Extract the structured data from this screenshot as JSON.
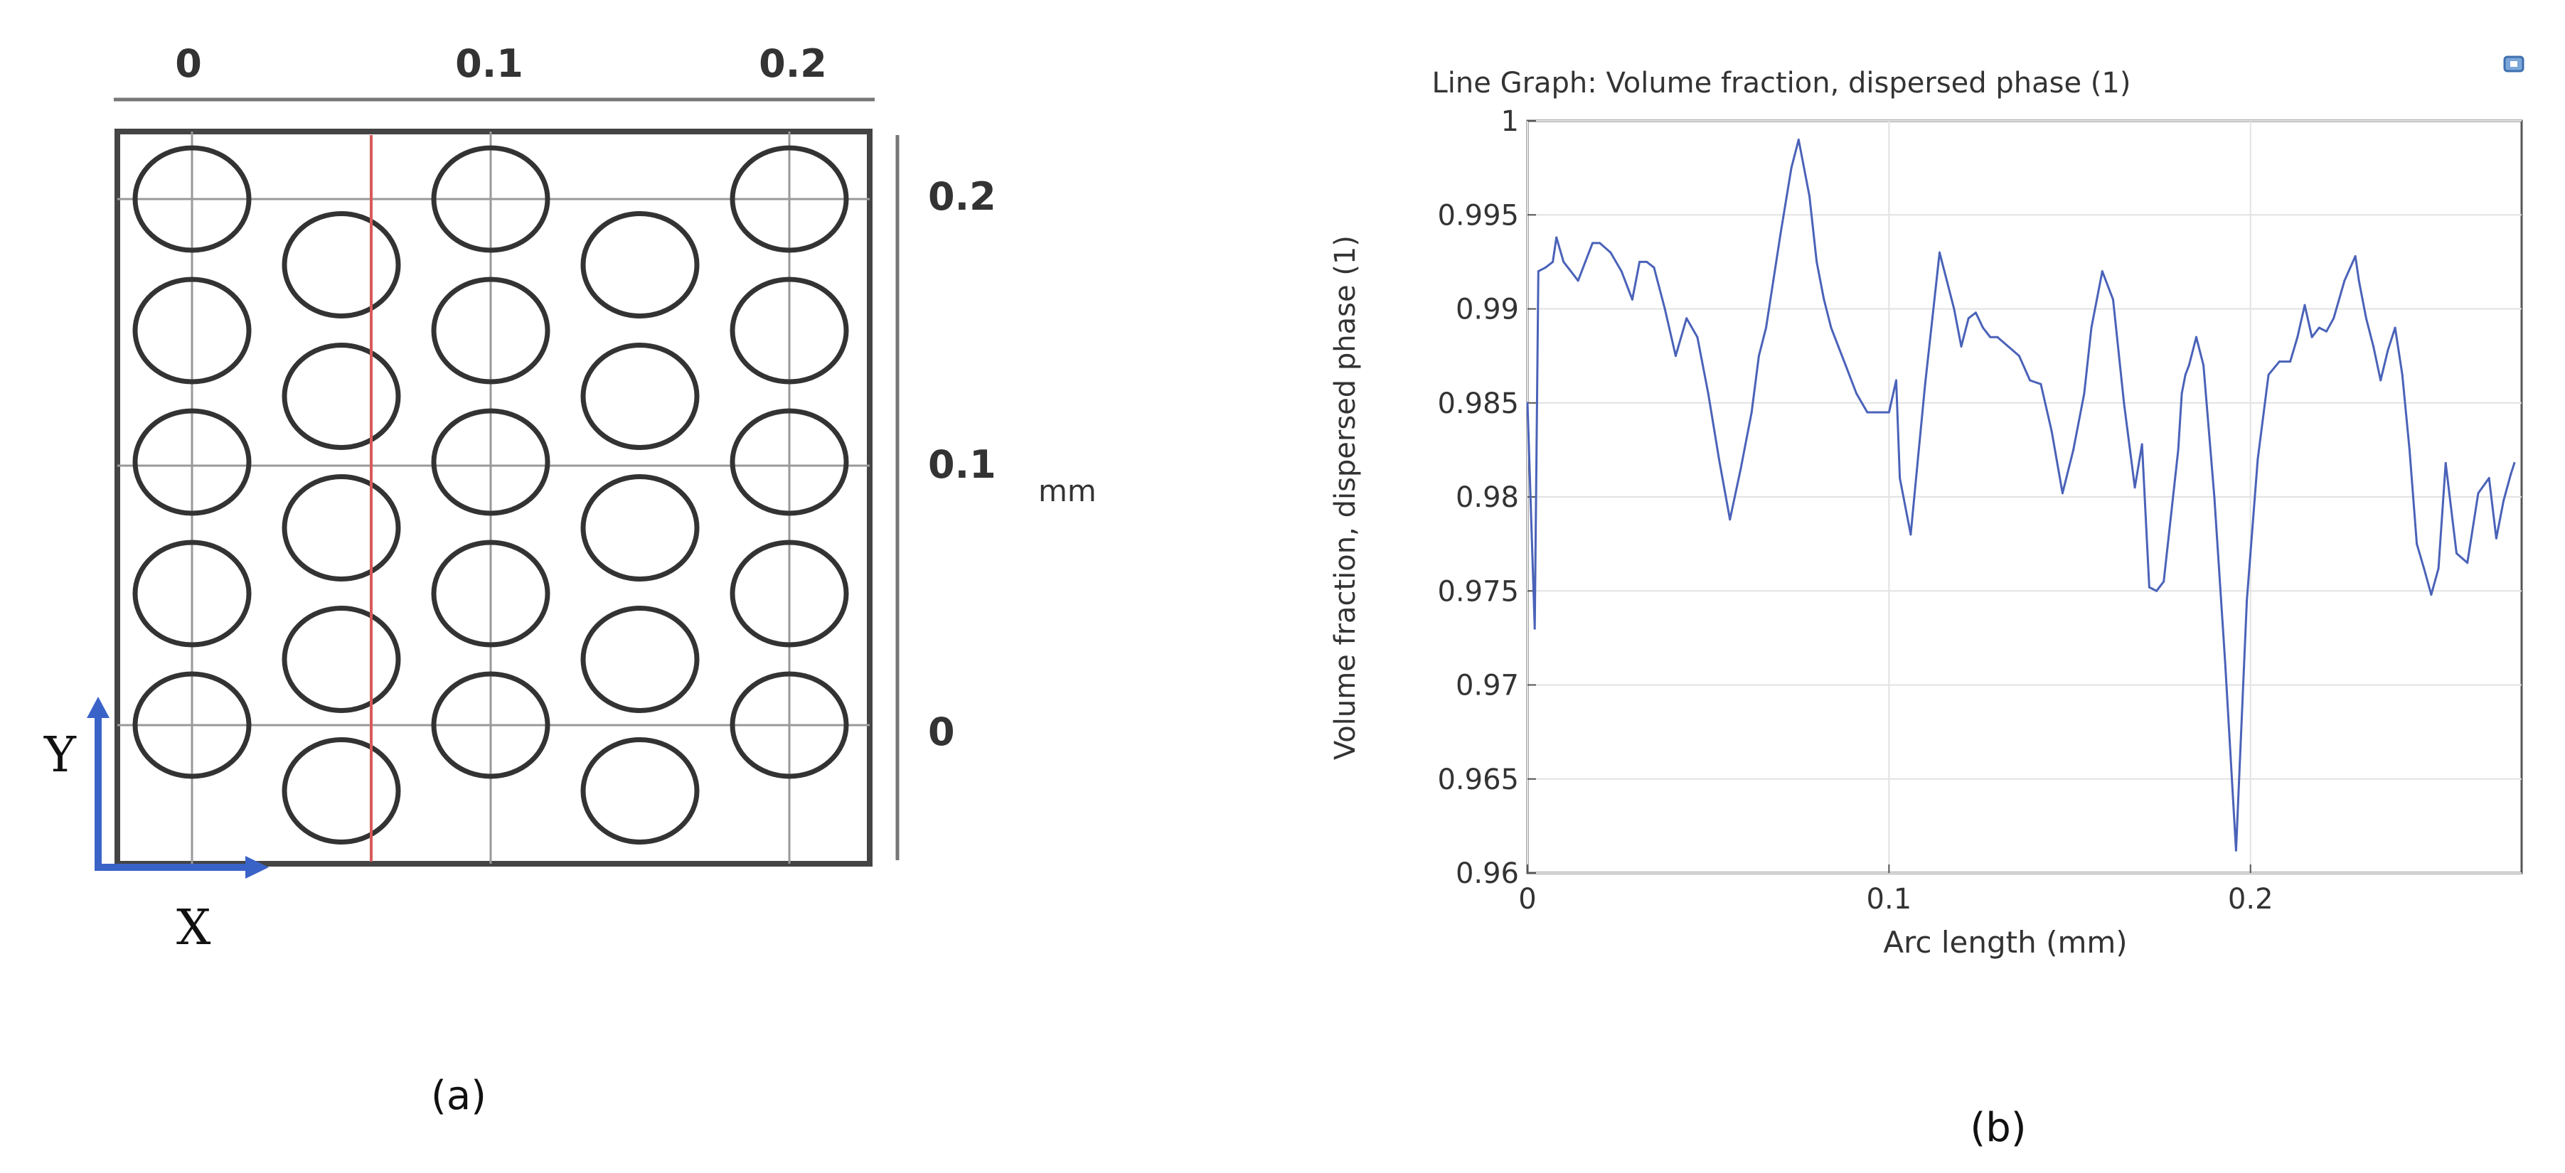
{
  "geometry_panel": {
    "top_ticks": [
      "0",
      "0.1",
      "0.2"
    ],
    "right_ticks": [
      "0.2",
      "0.1",
      "0"
    ],
    "unit_label": "mm",
    "axis_y_label": "Y",
    "axis_x_label": "X",
    "caption": "(a)",
    "axis_arrow_color": "#3a63c8",
    "cut_line_color": "#d85a5a",
    "circle_layout": {
      "outer_columns": [
        0,
        0.1,
        0.2
      ],
      "outer_rows": [
        0.2,
        0.15,
        0.1,
        0.05,
        0.0
      ],
      "inner_columns": [
        0.05,
        0.15
      ],
      "inner_rows": [
        0.175,
        0.125,
        0.075,
        0.025,
        -0.025
      ]
    },
    "cut_line_x_mm": 0.06
  },
  "graph_panel": {
    "caption": "(b)",
    "export_icon": "export-plot-icon",
    "line_color": "#4a62b8"
  },
  "chart_data": {
    "type": "line",
    "title": "Line Graph: Volume fraction, dispersed phase (1)",
    "xlabel": "Arc length (mm)",
    "ylabel": "Volume fraction, dispersed phase (1)",
    "xlim": [
      0,
      0.275
    ],
    "ylim": [
      0.96,
      1.0
    ],
    "xticks": [
      "0",
      "0.1",
      "0.2"
    ],
    "xtick_values": [
      0,
      0.1,
      0.2
    ],
    "yticks": [
      "0.96",
      "0.965",
      "0.97",
      "0.975",
      "0.98",
      "0.985",
      "0.99",
      "0.995",
      "1"
    ],
    "ytick_values": [
      0.96,
      0.965,
      0.97,
      0.975,
      0.98,
      0.985,
      0.99,
      0.995,
      1.0
    ],
    "grid": true,
    "series": [
      {
        "x": [
          0,
          0.002,
          0.003,
          0.005,
          0.007,
          0.008,
          0.01,
          0.012,
          0.014,
          0.016,
          0.018,
          0.02,
          0.023,
          0.026,
          0.029,
          0.031,
          0.033,
          0.035,
          0.038,
          0.041,
          0.044,
          0.047,
          0.05,
          0.053,
          0.056,
          0.059,
          0.062,
          0.064,
          0.066,
          0.068,
          0.07,
          0.073,
          0.075,
          0.078,
          0.08,
          0.082,
          0.084,
          0.086,
          0.088,
          0.091,
          0.094,
          0.097,
          0.1,
          0.102,
          0.103,
          0.106,
          0.108,
          0.11,
          0.112,
          0.114,
          0.116,
          0.118,
          0.12,
          0.122,
          0.124,
          0.126,
          0.128,
          0.13,
          0.133,
          0.136,
          0.139,
          0.142,
          0.145,
          0.148,
          0.151,
          0.154,
          0.156,
          0.159,
          0.162,
          0.165,
          0.168,
          0.17,
          0.172,
          0.174,
          0.176,
          0.178,
          0.18,
          0.181,
          0.182,
          0.183,
          0.185,
          0.187,
          0.19,
          0.193,
          0.196,
          0.199,
          0.202,
          0.205,
          0.208,
          0.211,
          0.213,
          0.215,
          0.217,
          0.219,
          0.221,
          0.223,
          0.226,
          0.229,
          0.23,
          0.231,
          0.232,
          0.234,
          0.236,
          0.238,
          0.24,
          0.242,
          0.244,
          0.246,
          0.248,
          0.25,
          0.252,
          0.254,
          0.257,
          0.26,
          0.263,
          0.266,
          0.268,
          0.27,
          0.272,
          0.273
        ],
        "y": [
          0.985,
          0.973,
          0.992,
          0.9922,
          0.9925,
          0.9938,
          0.9925,
          0.992,
          0.9915,
          0.9925,
          0.9935,
          0.9935,
          0.993,
          0.992,
          0.9905,
          0.9925,
          0.9925,
          0.9922,
          0.99,
          0.9875,
          0.9895,
          0.9885,
          0.9855,
          0.982,
          0.9788,
          0.9815,
          0.9845,
          0.9875,
          0.989,
          0.9915,
          0.994,
          0.9975,
          0.999,
          0.996,
          0.9925,
          0.9905,
          0.989,
          0.988,
          0.987,
          0.9855,
          0.9845,
          0.9845,
          0.9845,
          0.9862,
          0.981,
          0.978,
          0.982,
          0.986,
          0.9895,
          0.993,
          0.9915,
          0.99,
          0.988,
          0.9895,
          0.9898,
          0.989,
          0.9885,
          0.9885,
          0.988,
          0.9875,
          0.9862,
          0.986,
          0.9835,
          0.9802,
          0.9825,
          0.9855,
          0.989,
          0.992,
          0.9905,
          0.985,
          0.9805,
          0.9828,
          0.9752,
          0.975,
          0.9755,
          0.979,
          0.9825,
          0.9855,
          0.9865,
          0.987,
          0.9885,
          0.987,
          0.98,
          0.9712,
          0.9612,
          0.9745,
          0.982,
          0.9865,
          0.9872,
          0.9872,
          0.9885,
          0.9902,
          0.9885,
          0.989,
          0.9888,
          0.9895,
          0.9915,
          0.9928,
          0.9915,
          0.9905,
          0.9895,
          0.988,
          0.9862,
          0.9878,
          0.989,
          0.9865,
          0.9825,
          0.9775,
          0.9762,
          0.9748,
          0.9762,
          0.9818,
          0.977,
          0.9765,
          0.9802,
          0.981,
          0.9778,
          0.9798,
          0.9812,
          0.9818
        ]
      }
    ]
  }
}
